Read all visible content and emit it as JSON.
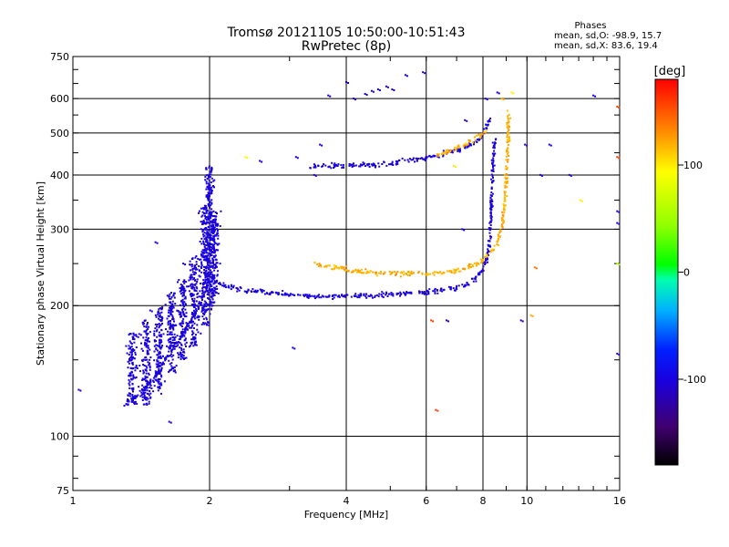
{
  "chart_data": {
    "type": "scatter",
    "title": "Tromsø 20121105 10:50:00-10:51:43",
    "subtitle": "RwPretec (8p)",
    "xlabel": "Frequency [MHz]",
    "ylabel": "Stationary phase Virtual Height [km]",
    "x_scale": "log",
    "y_scale": "log",
    "xlim": [
      1,
      16
    ],
    "ylim": [
      75,
      750
    ],
    "x_ticks": [
      1,
      2,
      4,
      6,
      8,
      10,
      16
    ],
    "y_ticks": [
      75,
      100,
      200,
      300,
      400,
      500,
      600,
      750
    ],
    "grid": true,
    "phases_box": {
      "title": "Phases",
      "o_line": "mean, sd,O: -98.9, 15.7",
      "x_line": "mean, sd,X:  83.6, 19.4"
    },
    "colorbar": {
      "label": "[deg]",
      "ticks": [
        "100",
        "0",
        "-100"
      ],
      "tick_values": [
        100,
        0,
        -100
      ],
      "range": [
        -180,
        180
      ]
    },
    "series": [
      {
        "key": "o_trace",
        "value": -100,
        "segments": [
          [
            [
              1.3,
              118
            ],
            [
              1.4,
              125
            ],
            [
              1.5,
              135
            ],
            [
              1.6,
              150
            ],
            [
              1.7,
              165
            ],
            [
              1.8,
              180
            ],
            [
              1.9,
              200
            ],
            [
              1.97,
              220
            ],
            [
              2.0,
              235
            ],
            [
              2.1,
              225
            ],
            [
              2.3,
              218
            ],
            [
              2.6,
              215
            ],
            [
              3.0,
              212
            ],
            [
              3.5,
              210
            ],
            [
              4.0,
              210
            ],
            [
              5.0,
              212
            ],
            [
              6.0,
              215
            ],
            [
              6.8,
              218
            ],
            [
              7.5,
              225
            ],
            [
              8.0,
              240
            ],
            [
              8.2,
              260
            ],
            [
              8.3,
              290
            ],
            [
              8.35,
              340
            ],
            [
              8.4,
              400
            ],
            [
              8.45,
              460
            ],
            [
              8.5,
              490
            ]
          ],
          [
            [
              3.3,
              420
            ],
            [
              3.8,
              420
            ],
            [
              4.2,
              420
            ],
            [
              5.0,
              425
            ],
            [
              5.8,
              435
            ],
            [
              6.5,
              445
            ],
            [
              7.2,
              460
            ],
            [
              7.8,
              480
            ],
            [
              8.1,
              510
            ],
            [
              8.3,
              540
            ]
          ]
        ]
      },
      {
        "key": "x_trace",
        "value": 120,
        "segments": [
          [
            [
              3.4,
              250
            ],
            [
              3.8,
              245
            ],
            [
              4.2,
              240
            ],
            [
              5.0,
              237
            ],
            [
              6.0,
              237
            ],
            [
              7.0,
              240
            ],
            [
              7.8,
              250
            ],
            [
              8.3,
              265
            ],
            [
              8.6,
              280
            ],
            [
              8.8,
              300
            ],
            [
              8.9,
              330
            ],
            [
              9.0,
              380
            ],
            [
              9.05,
              440
            ],
            [
              9.1,
              500
            ],
            [
              9.1,
              560
            ]
          ],
          [
            [
              6.2,
              440
            ],
            [
              6.8,
              455
            ],
            [
              7.3,
              470
            ],
            [
              7.8,
              490
            ],
            [
              8.2,
              505
            ]
          ]
        ]
      }
    ],
    "spread_cluster": {
      "key": "spread_f",
      "value": -100,
      "columns": [
        [
          1.35,
          118,
          175
        ],
        [
          1.45,
          118,
          185
        ],
        [
          1.55,
          125,
          200
        ],
        [
          1.65,
          140,
          215
        ],
        [
          1.75,
          150,
          230
        ],
        [
          1.85,
          160,
          260
        ],
        [
          1.95,
          180,
          340
        ],
        [
          2.0,
          195,
          420
        ],
        [
          2.05,
          200,
          330
        ]
      ]
    },
    "isolated_points": [
      [
        1.03,
        128,
        -100
      ],
      [
        1.38,
        170,
        -100
      ],
      [
        1.4,
        172,
        -100
      ],
      [
        1.48,
        195,
        -100
      ],
      [
        1.52,
        280,
        -100
      ],
      [
        1.63,
        108,
        -100
      ],
      [
        1.75,
        250,
        -100
      ],
      [
        2.58,
        431,
        -100
      ],
      [
        2.4,
        440,
        90
      ],
      [
        3.05,
        160,
        -100
      ],
      [
        3.1,
        440,
        -100
      ],
      [
        3.4,
        400,
        -100
      ],
      [
        3.5,
        470,
        -100
      ],
      [
        3.65,
        610,
        -100
      ],
      [
        4.0,
        655,
        -100
      ],
      [
        4.15,
        600,
        -100
      ],
      [
        4.4,
        615,
        -100
      ],
      [
        4.55,
        625,
        -100
      ],
      [
        4.7,
        630,
        -100
      ],
      [
        4.9,
        640,
        -100
      ],
      [
        5.05,
        630,
        -100
      ],
      [
        5.4,
        680,
        -100
      ],
      [
        5.9,
        690,
        -100
      ],
      [
        6.15,
        185,
        160
      ],
      [
        6.3,
        115,
        160
      ],
      [
        6.65,
        185,
        -100
      ],
      [
        6.9,
        420,
        100
      ],
      [
        7.2,
        300,
        -100
      ],
      [
        7.3,
        535,
        -100
      ],
      [
        8.1,
        600,
        -100
      ],
      [
        8.6,
        620,
        -100
      ],
      [
        8.8,
        600,
        120
      ],
      [
        9.25,
        620,
        100
      ],
      [
        9.7,
        185,
        -100
      ],
      [
        9.9,
        470,
        -100
      ],
      [
        10.2,
        190,
        120
      ],
      [
        10.4,
        245,
        140
      ],
      [
        10.7,
        400,
        -100
      ],
      [
        11.2,
        470,
        -100
      ],
      [
        12.4,
        400,
        -100
      ],
      [
        13.1,
        350,
        100
      ],
      [
        14.0,
        610,
        -100
      ],
      [
        15.8,
        575,
        160
      ],
      [
        15.8,
        440,
        160
      ],
      [
        15.8,
        330,
        -100
      ],
      [
        15.8,
        310,
        -100
      ],
      [
        15.8,
        155,
        -100
      ],
      [
        15.8,
        250,
        60
      ]
    ]
  }
}
